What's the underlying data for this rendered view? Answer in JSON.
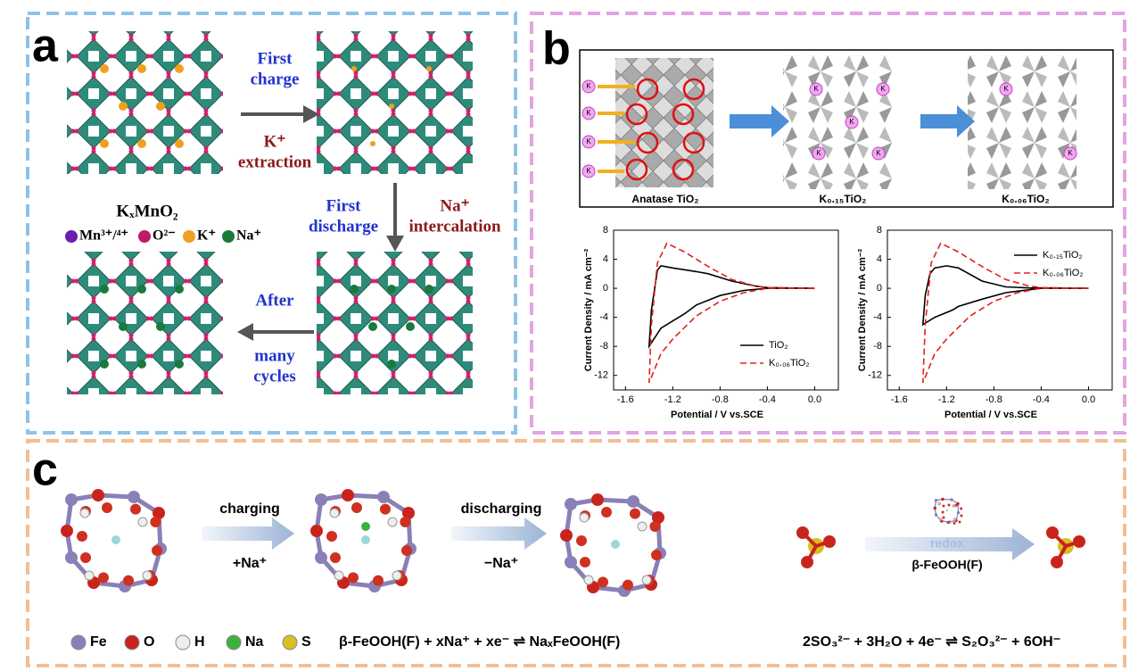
{
  "panel_a": {
    "label": "a",
    "step1_top": "First",
    "step1_bottom": "charge",
    "step1_ion": "K⁺",
    "step1_action": "extraction",
    "step2_top": "First",
    "step2_bottom": "discharge",
    "step2_ion": "Na⁺",
    "step2_action": "intercalation",
    "step3_top": "After",
    "step3_bottom": "many",
    "step3_last": "cycles",
    "compound": "KₓMnO₂",
    "legend": [
      "Mn³⁺/⁴⁺",
      "O²⁻",
      "K⁺",
      "Na⁺"
    ]
  },
  "panel_b": {
    "label": "b",
    "structures": [
      "Anatase TiO₂",
      "K₀.₁₅TiO₂",
      "K₀.₀₆TiO₂"
    ],
    "ion": "K"
  },
  "panel_c": {
    "label": "c",
    "arrow1_top": "charging",
    "arrow1_bottom": "+Na⁺",
    "arrow2_top": "discharging",
    "arrow2_bottom": "−Na⁺",
    "arrow3_top": "redox",
    "arrow3_bottom": "β-FeOOH(F)",
    "legend": [
      "Fe",
      "O",
      "H",
      "Na",
      "S"
    ],
    "equation1": "β-FeOOH(F) + xNa⁺ + xe⁻ ⇌ NaₓFeOOH(F)",
    "equation2": "2SO₃²⁻ + 3H₂O + 4e⁻ ⇌ S₂O₃²⁻ + 6OH⁻"
  },
  "chart_data": [
    {
      "type": "line",
      "x_label": "Potential / V vs.SCE",
      "y_label": "Current Density / mA cm⁻²",
      "xlim": [
        -1.7,
        0.2
      ],
      "ylim": [
        -14,
        8
      ],
      "xticks": [
        -1.6,
        -1.2,
        -0.8,
        -0.4,
        {
          "value": 0,
          "label": "0.0"
        }
      ],
      "yticks": [
        8,
        4,
        0,
        -4,
        -8,
        -12
      ],
      "legend": "lower right",
      "series": [
        {
          "name": "TiO₂",
          "color": "#000000",
          "linestyle": "solid",
          "x": [
            0,
            -0.4,
            -0.6,
            -0.8,
            -1.0,
            -1.1,
            -1.2,
            -1.3,
            -1.4,
            -1.38,
            -1.33,
            -1.3,
            -1.2,
            -1.0,
            -0.9,
            -0.7,
            -0.5,
            -0.4,
            0
          ],
          "values": [
            0,
            0,
            -0.3,
            -1,
            -2.3,
            -3.5,
            -4.5,
            -5.5,
            -8,
            -3,
            2.5,
            3.1,
            2.8,
            2.3,
            2,
            1,
            0.3,
            0.1,
            0
          ]
        },
        {
          "name": "K₀.₀₆TiO₂",
          "color": "#e0201b",
          "linestyle": "dashed",
          "x": [
            0,
            -0.4,
            -0.6,
            -0.8,
            -1.0,
            -1.2,
            -1.3,
            -1.4,
            -1.38,
            -1.33,
            -1.25,
            -1.1,
            -0.9,
            -0.7,
            -0.5,
            -0.4,
            0
          ],
          "values": [
            0,
            0,
            -0.6,
            -1.8,
            -3.8,
            -7,
            -9,
            -13,
            -5,
            3.5,
            6.2,
            5,
            3,
            1.2,
            0.3,
            0.1,
            0
          ]
        }
      ]
    },
    {
      "type": "line",
      "x_label": "Potential / V vs.SCE",
      "y_label": "Current Density / mA cm⁻²",
      "xlim": [
        -1.7,
        0.2
      ],
      "ylim": [
        -14,
        8
      ],
      "xticks": [
        -1.6,
        -1.2,
        -0.8,
        -0.4,
        {
          "value": 0,
          "label": "0.0"
        }
      ],
      "yticks": [
        8,
        4,
        0,
        -4,
        -8,
        -12
      ],
      "legend": "upper right",
      "series": [
        {
          "name": "K₀.₁₅TiO₂",
          "color": "#000000",
          "linestyle": "solid",
          "x": [
            0,
            -0.4,
            -0.7,
            -0.9,
            -1.1,
            -1.15,
            -1.3,
            -1.4,
            -1.38,
            -1.34,
            -1.3,
            -1.2,
            -1.1,
            -0.9,
            -0.7,
            -0.5,
            0
          ],
          "values": [
            0,
            0,
            -0.6,
            -1.5,
            -2.5,
            -3,
            -4,
            -5,
            -1,
            2,
            2.8,
            3.1,
            2.8,
            1,
            0.2,
            0.05,
            0
          ]
        },
        {
          "name": "K₀.₀₆TiO₂",
          "color": "#e0201b",
          "linestyle": "dashed",
          "x": [
            0,
            -0.4,
            -0.6,
            -0.8,
            -1.0,
            -1.2,
            -1.3,
            -1.4,
            -1.38,
            -1.33,
            -1.25,
            -1.1,
            -0.9,
            -0.7,
            -0.5,
            -0.4,
            0
          ],
          "values": [
            0,
            0,
            -0.6,
            -1.8,
            -3.8,
            -7,
            -9,
            -13,
            -5,
            3.5,
            6.2,
            5,
            3,
            1.2,
            0.3,
            0.1,
            0
          ]
        }
      ]
    }
  ]
}
